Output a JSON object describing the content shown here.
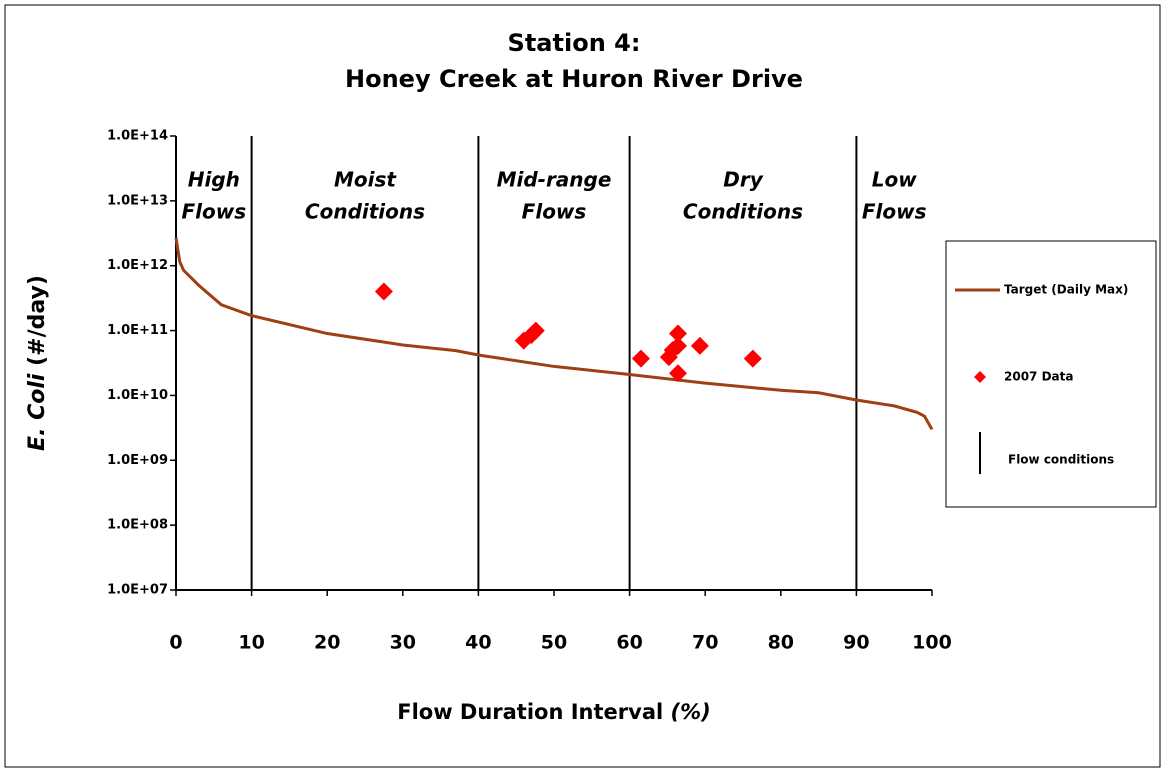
{
  "chart_data": {
    "type": "line",
    "title": [
      "Station 4:",
      "Honey Creek at Huron River Drive"
    ],
    "x_label": [
      "Flow Duration Interval",
      "(%)"
    ],
    "y_label": [
      "E. Coli",
      "(#/day)"
    ],
    "xlim": [
      0,
      100
    ],
    "xticks": [
      0,
      10,
      20,
      30,
      40,
      50,
      60,
      70,
      80,
      90,
      100
    ],
    "ylim": [
      10000000,
      100000000000000
    ],
    "log_y": true,
    "yticks": [
      {
        "value": 10000000,
        "label": "1.0E+07"
      },
      {
        "value": 100000000,
        "label": "1.0E+08"
      },
      {
        "value": 1000000000,
        "label": "1.0E+09"
      },
      {
        "value": 10000000000,
        "label": "1.0E+10"
      },
      {
        "value": 100000000000,
        "label": "1.0E+11"
      },
      {
        "value": 1000000000000,
        "label": "1.0E+12"
      },
      {
        "value": 10000000000000,
        "label": "1.0E+13"
      },
      {
        "value": 100000000000000,
        "label": "1.0E+14"
      }
    ],
    "zones": [
      {
        "label": [
          "High",
          "Flows"
        ],
        "from": 0,
        "to": 10
      },
      {
        "label": [
          "Moist",
          "Conditions"
        ],
        "from": 10,
        "to": 40
      },
      {
        "label": [
          "Mid-range",
          "Flows"
        ],
        "from": 40,
        "to": 60
      },
      {
        "label": [
          "Dry",
          "Conditions"
        ],
        "from": 60,
        "to": 90
      },
      {
        "label": [
          "Low",
          "Flows"
        ],
        "from": 90,
        "to": 100
      }
    ],
    "series": [
      {
        "name": "Target (Daily Max)",
        "color": "#9e3f14",
        "mode": "line",
        "x": [
          0,
          0.5,
          1,
          3,
          6,
          10,
          20,
          30,
          37,
          40,
          50,
          60,
          70,
          80,
          85,
          90,
          95,
          98,
          99,
          100
        ],
        "values": [
          2700000000000,
          1150000000000,
          850000000000,
          500000000000,
          250000000000,
          170000000000,
          90000000000,
          60000000000,
          49000000000,
          42000000000,
          28000000000,
          21000000000,
          15500000000,
          12000000000,
          11000000000,
          8500000000,
          6900000000,
          5500000000,
          4800000000,
          3000000000
        ]
      },
      {
        "name": "2007 Data",
        "color": "#ff0000",
        "mode": "markers",
        "x": [
          27.5,
          46,
          47,
          47.6,
          61.5,
          65.2,
          65.7,
          66.4,
          66.4,
          66.4,
          69.3,
          76.3
        ],
        "values": [
          400000000000,
          70000000000,
          85000000000,
          100000000000,
          37000000000,
          39000000000,
          50000000000,
          90000000000,
          58000000000,
          22000000000,
          58000000000,
          37000000000
        ]
      }
    ],
    "flow_conditions": {
      "name": "Flow conditions",
      "color": "#000000",
      "x": [
        10,
        40,
        60,
        90
      ]
    }
  }
}
